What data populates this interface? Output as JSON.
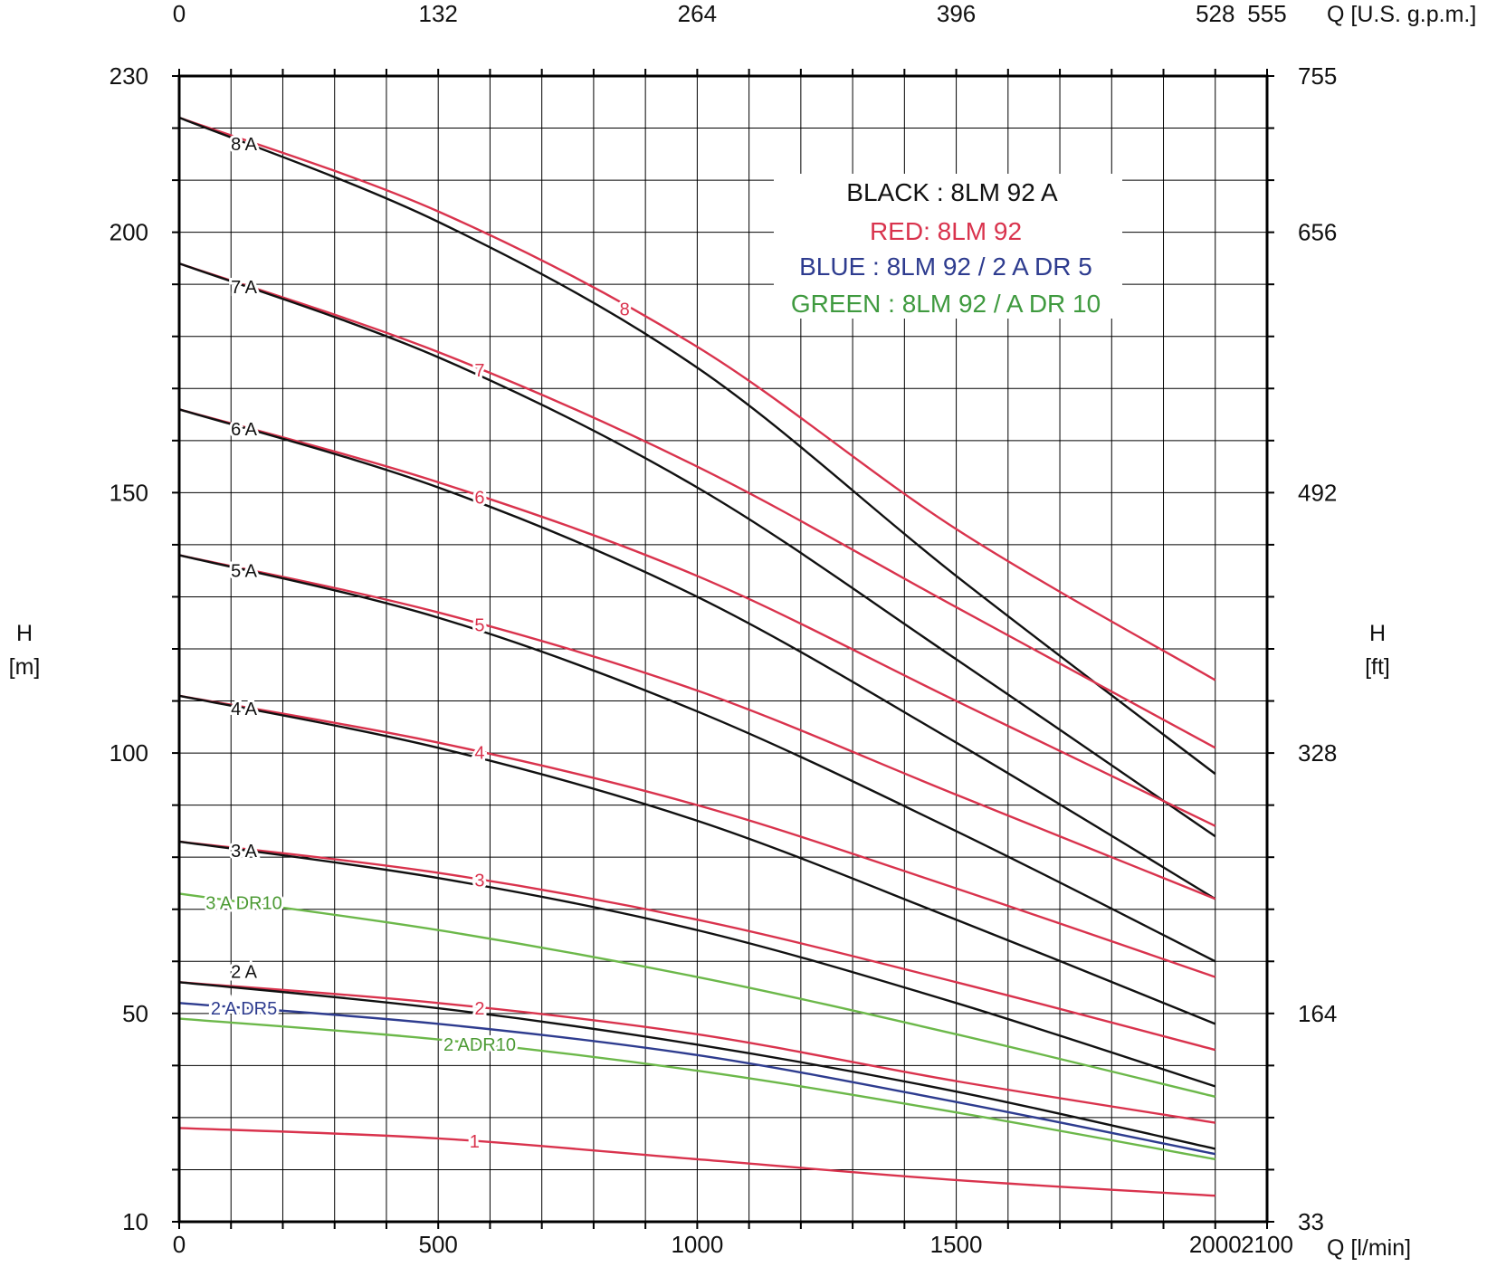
{
  "chart_data": {
    "type": "line",
    "x_axis": {
      "label": "Q [l/min]",
      "range": [
        0,
        2100
      ],
      "ticks": [
        0,
        500,
        1000,
        1500,
        2000,
        2100
      ]
    },
    "x_axis_top": {
      "label": "Q [U.S. g.p.m.]",
      "ticks": [
        {
          "value": 0,
          "label": "0"
        },
        {
          "value": 500,
          "label": "132"
        },
        {
          "value": 1000,
          "label": "264"
        },
        {
          "value": 1500,
          "label": "396"
        },
        {
          "value": 2000,
          "label": "528"
        },
        {
          "value": 2100,
          "label": "555"
        }
      ]
    },
    "y_axis": {
      "label_line1": "H",
      "label_line2": "[m]",
      "range": [
        10,
        230
      ],
      "ticks": [
        10,
        50,
        100,
        150,
        200,
        230
      ]
    },
    "y_axis_right": {
      "label_line1": "H",
      "label_line2": "[ft]",
      "ticks": [
        {
          "value": 10,
          "label": "33"
        },
        {
          "value": 50,
          "label": "164"
        },
        {
          "value": 100,
          "label": "328"
        },
        {
          "value": 150,
          "label": "492"
        },
        {
          "value": 200,
          "label": "656"
        },
        {
          "value": 230,
          "label": "755"
        }
      ]
    },
    "grid": true,
    "colors": {
      "black": "#111111",
      "red": "#d9334d",
      "blue": "#2e3c8f",
      "green": "#6cb84a"
    },
    "legend": {
      "position": "top-right",
      "entries": [
        {
          "text": "BLACK : 8LM 92 A",
          "color": "black"
        },
        {
          "text": "RED: 8LM 92",
          "color": "red"
        },
        {
          "text": "BLUE : 8LM 92 / 2 A DR 5",
          "color": "blue"
        },
        {
          "text": "GREEN : 8LM 92 / A DR 10",
          "color": "green"
        }
      ]
    },
    "series": [
      {
        "name": "8",
        "color": "red",
        "label_at": 860,
        "points": [
          [
            0,
            222
          ],
          [
            500,
            204
          ],
          [
            1000,
            178
          ],
          [
            1500,
            143
          ],
          [
            2000,
            114
          ]
        ]
      },
      {
        "name": "8 A",
        "color": "black",
        "label_at": 125,
        "points": [
          [
            0,
            222
          ],
          [
            500,
            202
          ],
          [
            1000,
            174
          ],
          [
            1500,
            134
          ],
          [
            2000,
            96
          ]
        ]
      },
      {
        "name": "7",
        "color": "red",
        "label_at": 580,
        "points": [
          [
            0,
            194
          ],
          [
            500,
            177
          ],
          [
            1000,
            155
          ],
          [
            1500,
            128
          ],
          [
            2000,
            101
          ]
        ]
      },
      {
        "name": "7 A",
        "color": "black",
        "label_at": 125,
        "points": [
          [
            0,
            194
          ],
          [
            500,
            176
          ],
          [
            1000,
            151
          ],
          [
            1500,
            118
          ],
          [
            2000,
            84
          ]
        ]
      },
      {
        "name": "6",
        "color": "red",
        "label_at": 580,
        "points": [
          [
            0,
            166
          ],
          [
            500,
            152
          ],
          [
            1000,
            134
          ],
          [
            1500,
            110
          ],
          [
            2000,
            86
          ]
        ]
      },
      {
        "name": "6 A",
        "color": "black",
        "label_at": 125,
        "points": [
          [
            0,
            166
          ],
          [
            500,
            151
          ],
          [
            1000,
            130
          ],
          [
            1500,
            102
          ],
          [
            2000,
            72
          ]
        ]
      },
      {
        "name": "5",
        "color": "red",
        "label_at": 580,
        "points": [
          [
            0,
            138
          ],
          [
            500,
            127
          ],
          [
            1000,
            112
          ],
          [
            1500,
            92
          ],
          [
            2000,
            72
          ]
        ]
      },
      {
        "name": "5 A",
        "color": "black",
        "label_at": 125,
        "points": [
          [
            0,
            138
          ],
          [
            500,
            126
          ],
          [
            1000,
            108
          ],
          [
            1500,
            85
          ],
          [
            2000,
            60
          ]
        ]
      },
      {
        "name": "4",
        "color": "red",
        "label_at": 580,
        "points": [
          [
            0,
            111
          ],
          [
            500,
            102
          ],
          [
            1000,
            90
          ],
          [
            1500,
            74
          ],
          [
            2000,
            57
          ]
        ]
      },
      {
        "name": "4 A",
        "color": "black",
        "label_at": 125,
        "points": [
          [
            0,
            111
          ],
          [
            500,
            101
          ],
          [
            1000,
            87
          ],
          [
            1500,
            68
          ],
          [
            2000,
            48
          ]
        ]
      },
      {
        "name": "3",
        "color": "red",
        "label_at": 580,
        "points": [
          [
            0,
            83
          ],
          [
            500,
            77
          ],
          [
            1000,
            68
          ],
          [
            1500,
            56
          ],
          [
            2000,
            43
          ]
        ]
      },
      {
        "name": "3 A",
        "color": "black",
        "label_at": 125,
        "points": [
          [
            0,
            83
          ],
          [
            500,
            76
          ],
          [
            1000,
            66
          ],
          [
            1500,
            52
          ],
          [
            2000,
            36
          ]
        ]
      },
      {
        "name": "3 A DR10",
        "color": "green",
        "label_at": 125,
        "points": [
          [
            0,
            73
          ],
          [
            500,
            66
          ],
          [
            1000,
            57
          ],
          [
            1500,
            46
          ],
          [
            2000,
            34
          ]
        ]
      },
      {
        "name": "2",
        "color": "red",
        "label_at": 580,
        "points": [
          [
            0,
            56
          ],
          [
            500,
            52
          ],
          [
            1000,
            46
          ],
          [
            1500,
            37
          ],
          [
            2000,
            29
          ]
        ]
      },
      {
        "name": "2 A",
        "color": "black",
        "label_at": 125,
        "label_above": true,
        "points": [
          [
            0,
            56
          ],
          [
            500,
            51
          ],
          [
            1000,
            44
          ],
          [
            1500,
            35
          ],
          [
            2000,
            24
          ]
        ]
      },
      {
        "name": "2 A DR5",
        "color": "blue",
        "label_at": 125,
        "points": [
          [
            0,
            52
          ],
          [
            500,
            48
          ],
          [
            1000,
            42
          ],
          [
            1500,
            33
          ],
          [
            2000,
            23
          ]
        ]
      },
      {
        "name": "2 ADR10",
        "color": "green",
        "label_at": 580,
        "points": [
          [
            0,
            49
          ],
          [
            500,
            45
          ],
          [
            1000,
            39
          ],
          [
            1500,
            31
          ],
          [
            2000,
            22
          ]
        ]
      },
      {
        "name": "1",
        "color": "red",
        "label_at": 570,
        "points": [
          [
            0,
            28
          ],
          [
            500,
            26
          ],
          [
            1000,
            22
          ],
          [
            1500,
            18
          ],
          [
            2000,
            15
          ]
        ]
      }
    ]
  }
}
